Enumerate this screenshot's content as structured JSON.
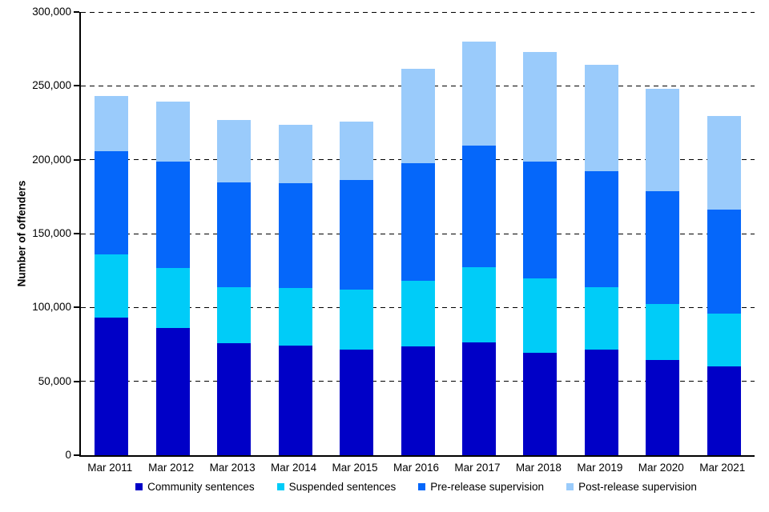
{
  "chart_data": {
    "type": "bar",
    "stacked": true,
    "title": "",
    "xlabel": "",
    "ylabel": "Number of offenders",
    "ylim": [
      0,
      300000
    ],
    "ytick_interval": 50000,
    "yticks": [
      0,
      50000,
      100000,
      150000,
      200000,
      250000,
      300000
    ],
    "ytick_labels": [
      "0",
      "50,000",
      "100,000",
      "150,000",
      "200,000",
      "250,000",
      "300,000"
    ],
    "grid": "horizontal-dashed",
    "legend_position": "bottom",
    "categories": [
      "Mar 2011",
      "Mar 2012",
      "Mar 2013",
      "Mar 2014",
      "Mar 2015",
      "Mar 2016",
      "Mar 2017",
      "Mar 2018",
      "Mar 2019",
      "Mar 2020",
      "Mar 2021"
    ],
    "series": [
      {
        "name": "Community sentences",
        "color": "#0000C7",
        "values": [
          93000,
          86000,
          76000,
          74000,
          71500,
          73500,
          76500,
          69500,
          71500,
          64500,
          60000
        ]
      },
      {
        "name": "Suspended sentences",
        "color": "#00CCF8",
        "values": [
          43000,
          41000,
          38000,
          39000,
          40500,
          44500,
          50500,
          50000,
          42000,
          38000,
          36000
        ]
      },
      {
        "name": "Pre-release supervision",
        "color": "#0567FA",
        "values": [
          70000,
          71500,
          70500,
          71000,
          74500,
          79500,
          82500,
          79500,
          78500,
          76000,
          70000
        ]
      },
      {
        "name": "Post-release supervision",
        "color": "#9ACBFB",
        "values": [
          37000,
          41000,
          42500,
          39500,
          39500,
          64000,
          70500,
          74000,
          72500,
          69500,
          63500
        ]
      }
    ],
    "totals": [
      243000,
      239500,
      227000,
      223500,
      226000,
      261500,
      280000,
      273000,
      264500,
      248000,
      229500
    ]
  }
}
